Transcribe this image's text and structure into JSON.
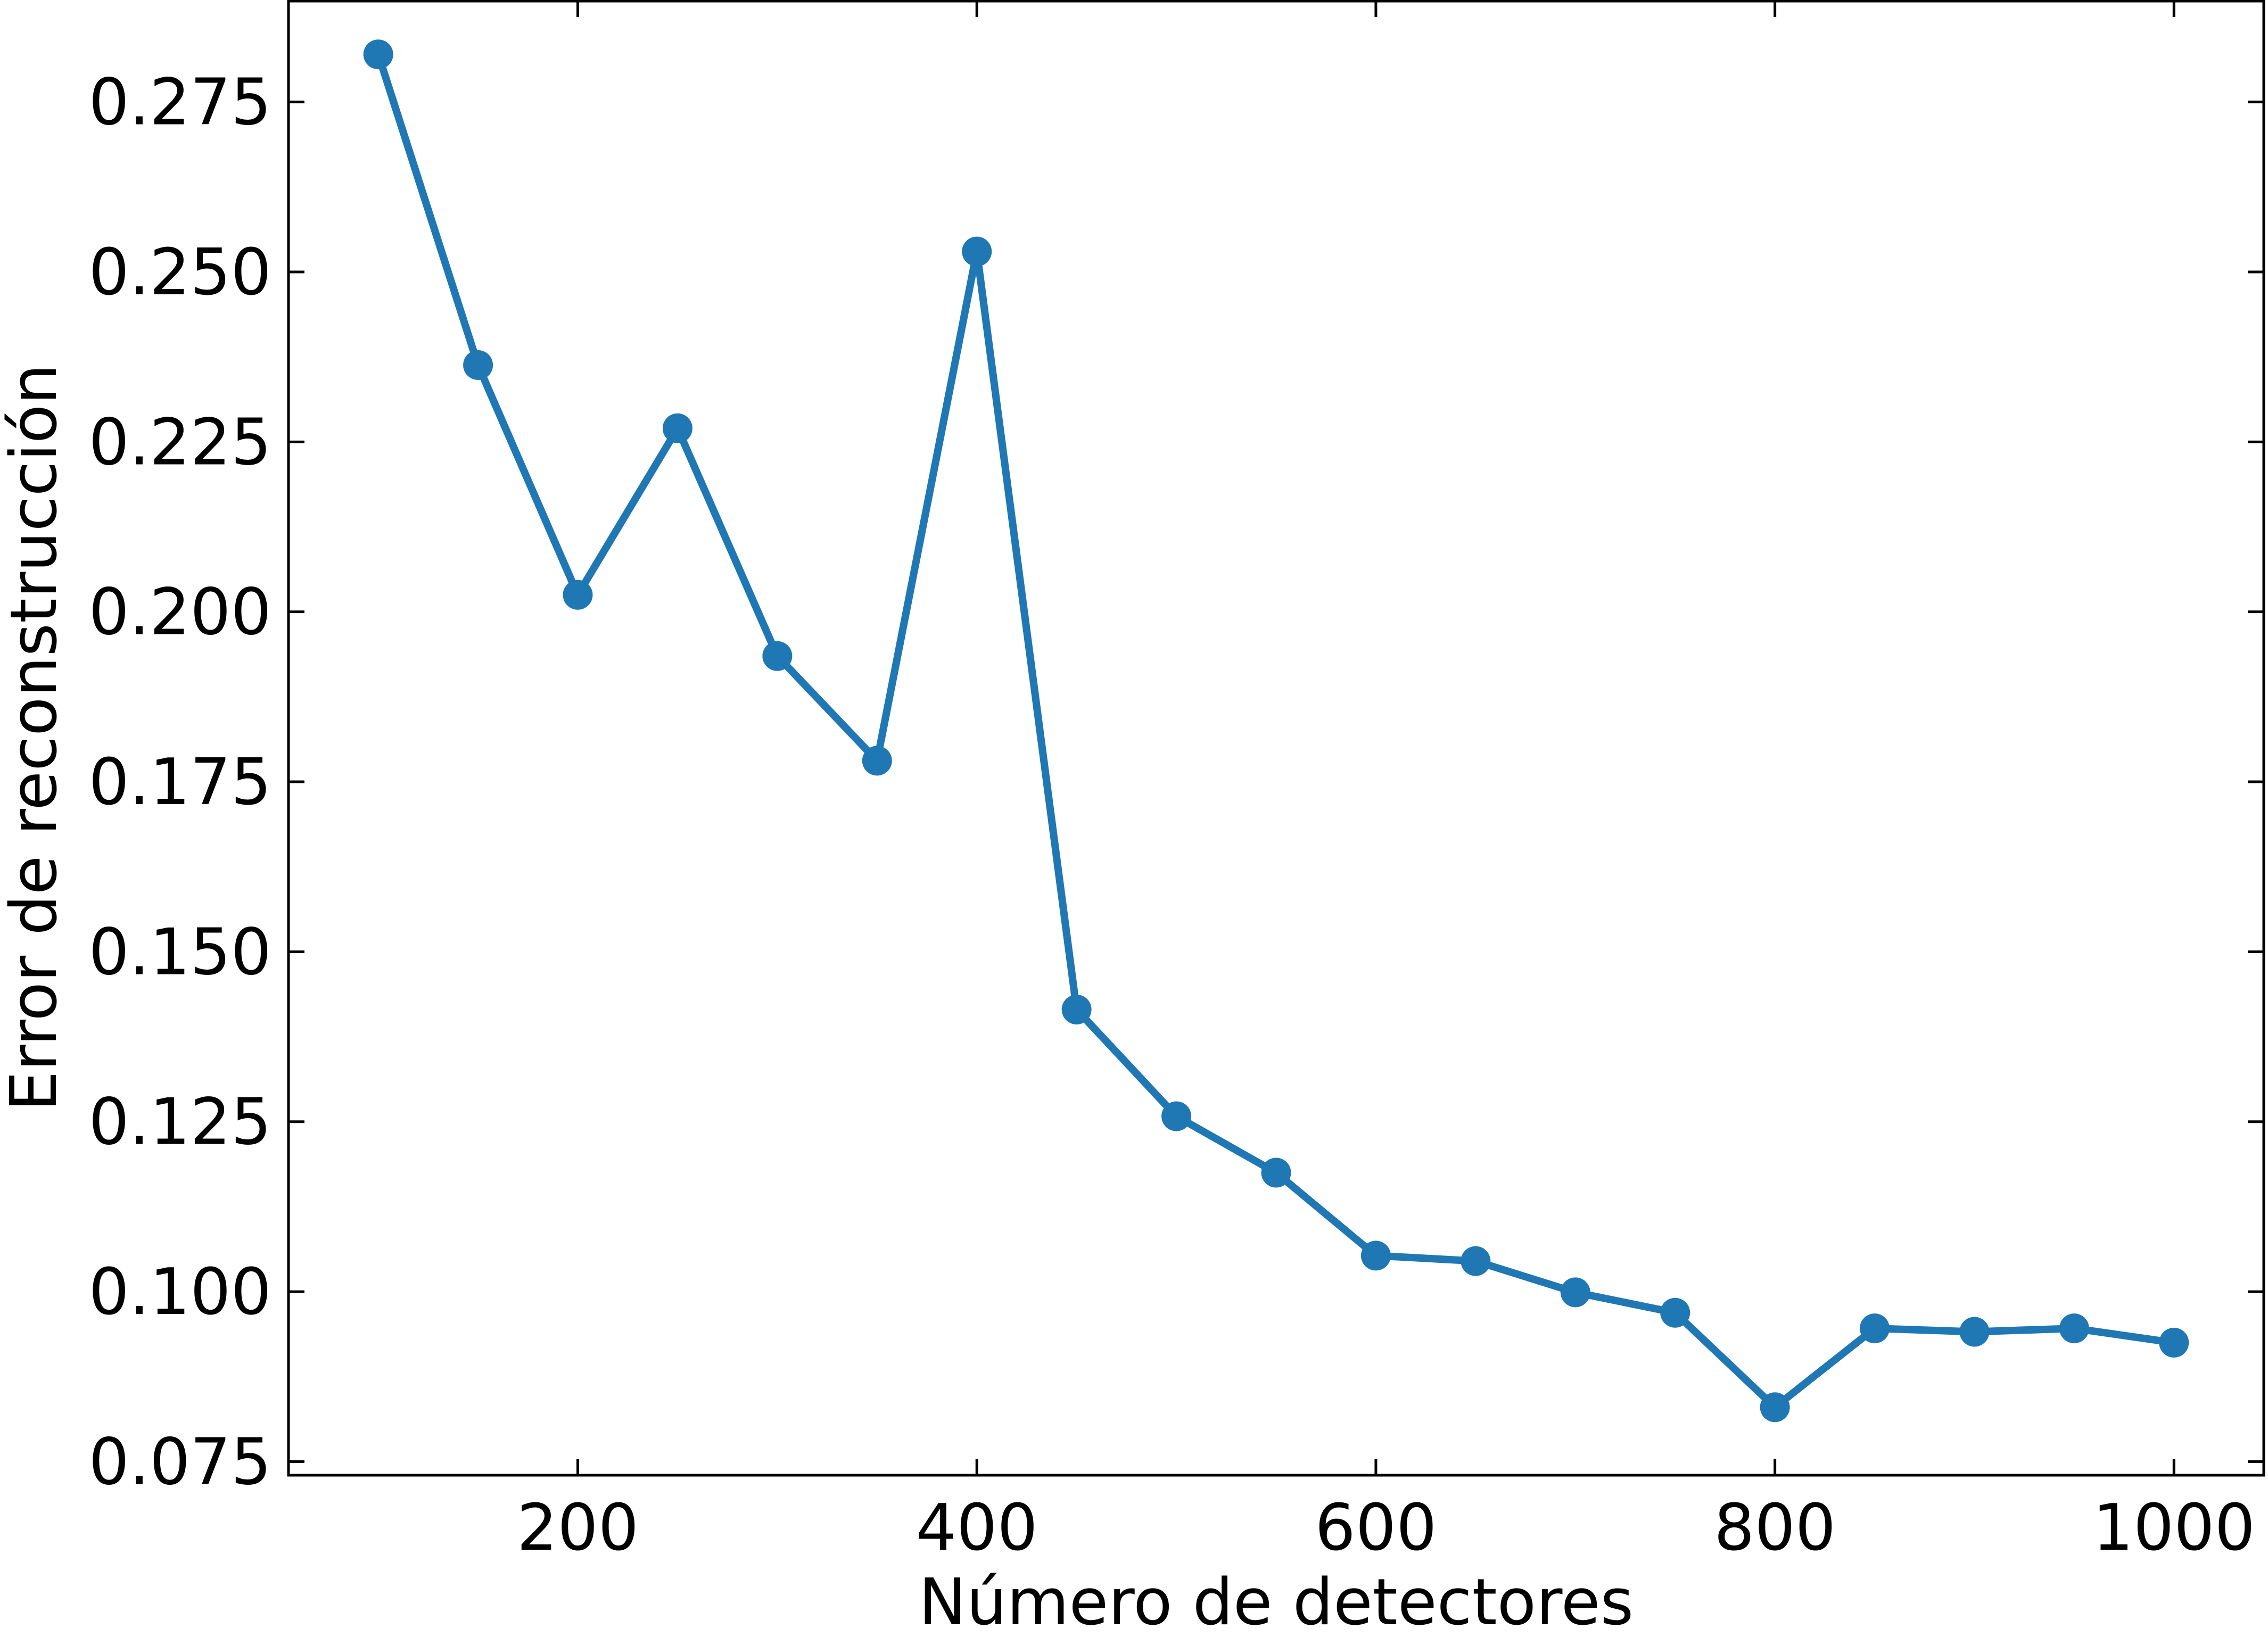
{
  "chart_data": {
    "type": "line",
    "title": "",
    "xlabel": "Número de detectores",
    "ylabel": "Error de reconstrucción",
    "xlim": [
      55,
      1045
    ],
    "ylim": [
      0.073,
      0.29
    ],
    "xticks": [
      200,
      400,
      600,
      800,
      1000
    ],
    "xtick_labels": [
      "200",
      "400",
      "600",
      "800",
      "1000"
    ],
    "yticks": [
      0.075,
      0.1,
      0.125,
      0.15,
      0.175,
      0.2,
      0.225,
      0.25,
      0.275
    ],
    "ytick_labels": [
      "0.075",
      "0.100",
      "0.125",
      "0.150",
      "0.175",
      "0.200",
      "0.225",
      "0.250",
      "0.275"
    ],
    "tick_direction": "in",
    "ticks_on_all_sides": true,
    "grid": false,
    "legend": "none",
    "series": [
      {
        "color": "#1f77b4",
        "marker": "circle",
        "x": [
          100,
          150,
          200,
          250,
          300,
          350,
          400,
          450,
          500,
          550,
          600,
          650,
          700,
          750,
          800,
          850,
          900,
          950,
          1000
        ],
        "y": [
          0.282,
          0.2363,
          0.2025,
          0.227,
          0.1935,
          0.1781,
          0.253,
          0.1415,
          0.1258,
          0.1175,
          0.1053,
          0.1045,
          0.0999,
          0.0969,
          0.083,
          0.0946,
          0.0941,
          0.0946,
          0.0925
        ]
      }
    ]
  }
}
